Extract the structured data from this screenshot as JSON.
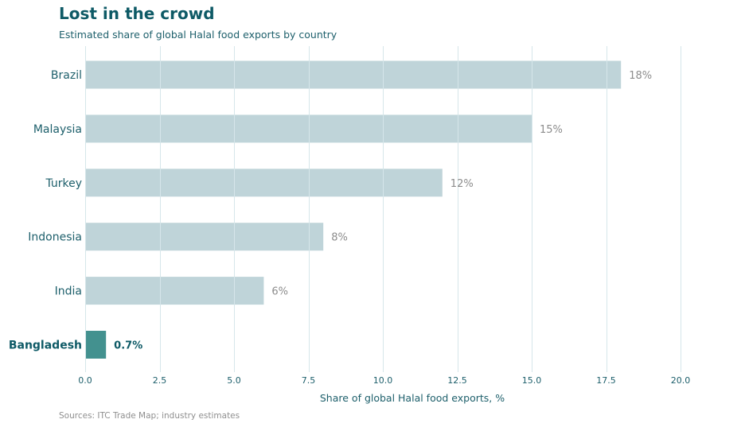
{
  "header": {
    "title": "Lost in the crowd",
    "subtitle": "Estimated share of global Halal food exports by country"
  },
  "footer": {
    "source": "Sources: ITC Trade Map; industry estimates"
  },
  "colors": {
    "bar": "#bfd4d9",
    "highlight_bar": "#43918f",
    "gridline": "#d6e6ea"
  },
  "chart_data": {
    "type": "bar",
    "orientation": "horizontal",
    "title": "Lost in the crowd",
    "subtitle": "Estimated share of global Halal food exports by country",
    "categories": [
      "Brazil",
      "Malaysia",
      "Turkey",
      "Indonesia",
      "India",
      "Bangladesh"
    ],
    "values": [
      18,
      15,
      12,
      8,
      6,
      0.7
    ],
    "value_labels": [
      "18%",
      "15%",
      "12%",
      "8%",
      "6%",
      "0.7%"
    ],
    "highlight": "Bangladesh",
    "xlabel": "Share of global Halal food exports, %",
    "ylabel": "",
    "xlim": [
      0,
      20
    ],
    "xticks": [
      0,
      2.5,
      5,
      7.5,
      10,
      12.5,
      15,
      17.5,
      20
    ],
    "xtick_labels": [
      "0.0",
      "2.5",
      "5.0",
      "7.5",
      "10.0",
      "12.5",
      "15.0",
      "17.5",
      "20.0"
    ],
    "grid": "vertical",
    "legend": "none"
  }
}
